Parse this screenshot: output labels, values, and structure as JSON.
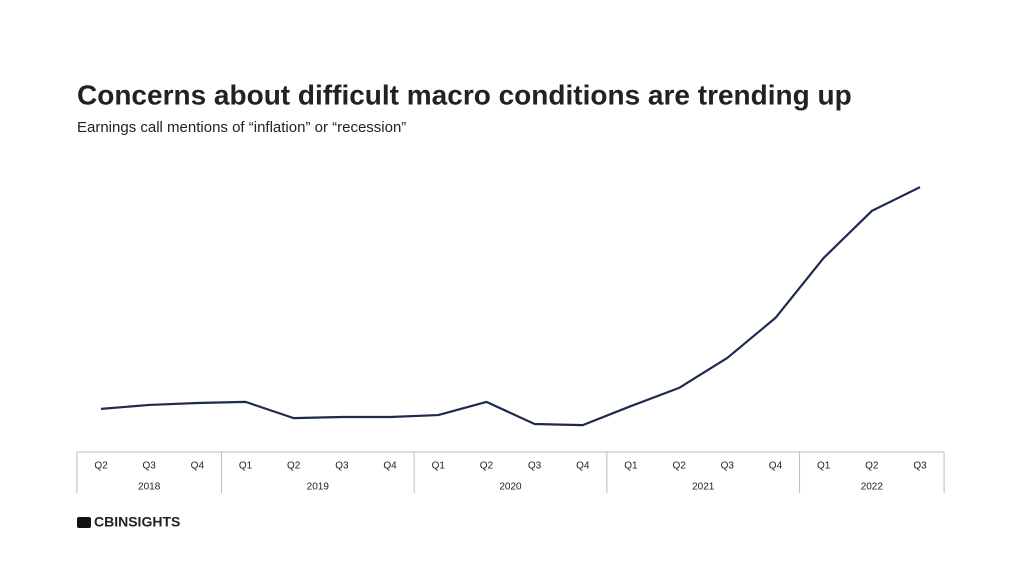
{
  "chart_data": {
    "type": "line",
    "title": "Concerns about difficult macro conditions are trending up",
    "subtitle": "Earnings call mentions of “inflation” or “recession”",
    "groups": [
      {
        "name": "2018",
        "categories": [
          "Q2",
          "Q3",
          "Q4"
        ]
      },
      {
        "name": "2019",
        "categories": [
          "Q1",
          "Q2",
          "Q3",
          "Q4"
        ]
      },
      {
        "name": "2020",
        "categories": [
          "Q1",
          "Q2",
          "Q3",
          "Q4"
        ]
      },
      {
        "name": "2021",
        "categories": [
          "Q1",
          "Q2",
          "Q3",
          "Q4"
        ]
      },
      {
        "name": "2022",
        "categories": [
          "Q1",
          "Q2",
          "Q3"
        ]
      }
    ],
    "series": [
      {
        "color": "#1f2a4f",
        "values": [
          15.4,
          16.8,
          17.5,
          17.9,
          12.1,
          12.5,
          12.5,
          13.2,
          17.9,
          10.0,
          9.6,
          16.4,
          22.9,
          33.6,
          47.9,
          69.3,
          86.1,
          94.6
        ]
      }
    ],
    "ylim": [
      0,
      100
    ],
    "brand": "CBINSIGHTS"
  }
}
